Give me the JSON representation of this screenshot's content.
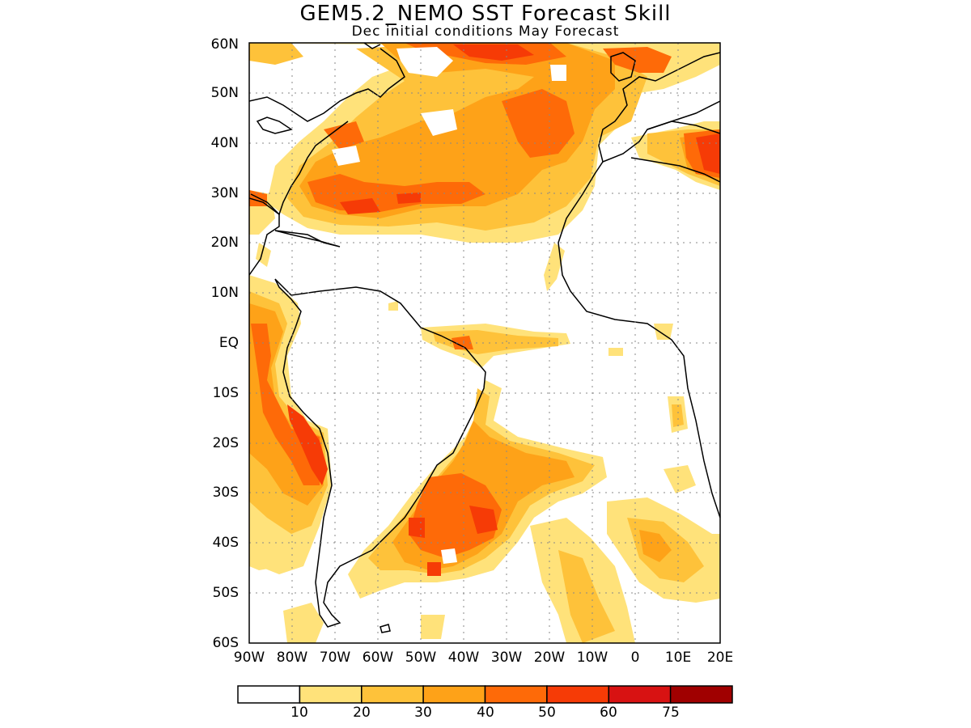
{
  "title": "GEM5.2_NEMO SST Forecast Skill",
  "subtitle": "Dec initial conditions   May Forecast",
  "y_ticks": [
    "60N",
    "50N",
    "40N",
    "30N",
    "20N",
    "10N",
    "EQ",
    "10S",
    "20S",
    "30S",
    "40S",
    "50S",
    "60S"
  ],
  "x_ticks": [
    "90W",
    "80W",
    "70W",
    "60W",
    "50W",
    "40W",
    "30W",
    "20W",
    "10W",
    "0",
    "10E",
    "20E"
  ],
  "colorbar": {
    "labels": [
      "10",
      "20",
      "30",
      "40",
      "50",
      "60",
      "75"
    ],
    "colors": [
      "#ffffff",
      "#ffe27a",
      "#fec23a",
      "#fea218",
      "#fe6a08",
      "#f63b06",
      "#d81212",
      "#a00000"
    ]
  }
}
